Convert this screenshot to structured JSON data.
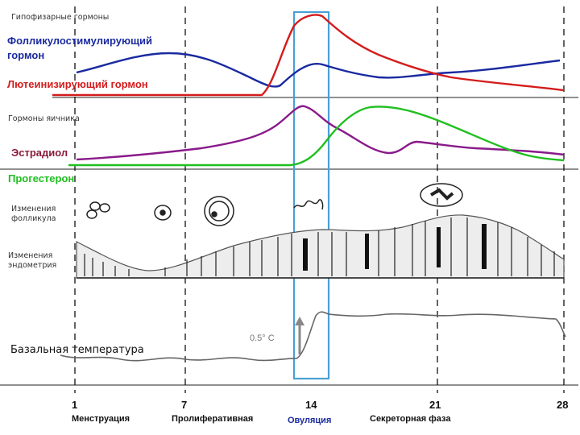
{
  "sections": {
    "pituitary": {
      "title": "Гипофизарные гормоны",
      "fsh_line1": "Фолликулостимулирующий",
      "fsh_line2": "гормон",
      "lh": "Лютеинизирующий гормон"
    },
    "ovarian": {
      "title": "Гормоны яичника",
      "estradiol": "Эстрадиол",
      "progesterone": "Прогестерон"
    },
    "follicle": {
      "line1": "Изменения",
      "line2": "фолликула"
    },
    "endometrium": {
      "line1": "Изменения",
      "line2": "эндометрия"
    },
    "temperature": {
      "title": "Базальная температура",
      "rise": "0.5° C"
    }
  },
  "days": [
    "1",
    "7",
    "14",
    "21",
    "28"
  ],
  "phases": {
    "menstruation": "Менструация",
    "proliferative": "Пролиферативная",
    "ovulation": "Овуляция",
    "secretory": "Секреторная фаза"
  },
  "colors": {
    "fsh": "#1a2aa0",
    "lh": "#d41c1c",
    "estradiol": "#8a1a8a",
    "progesterone": "#1fbf1f",
    "ovulation_band": "#4a9fd6",
    "phase_ovulation": "#1a2aa0"
  }
}
